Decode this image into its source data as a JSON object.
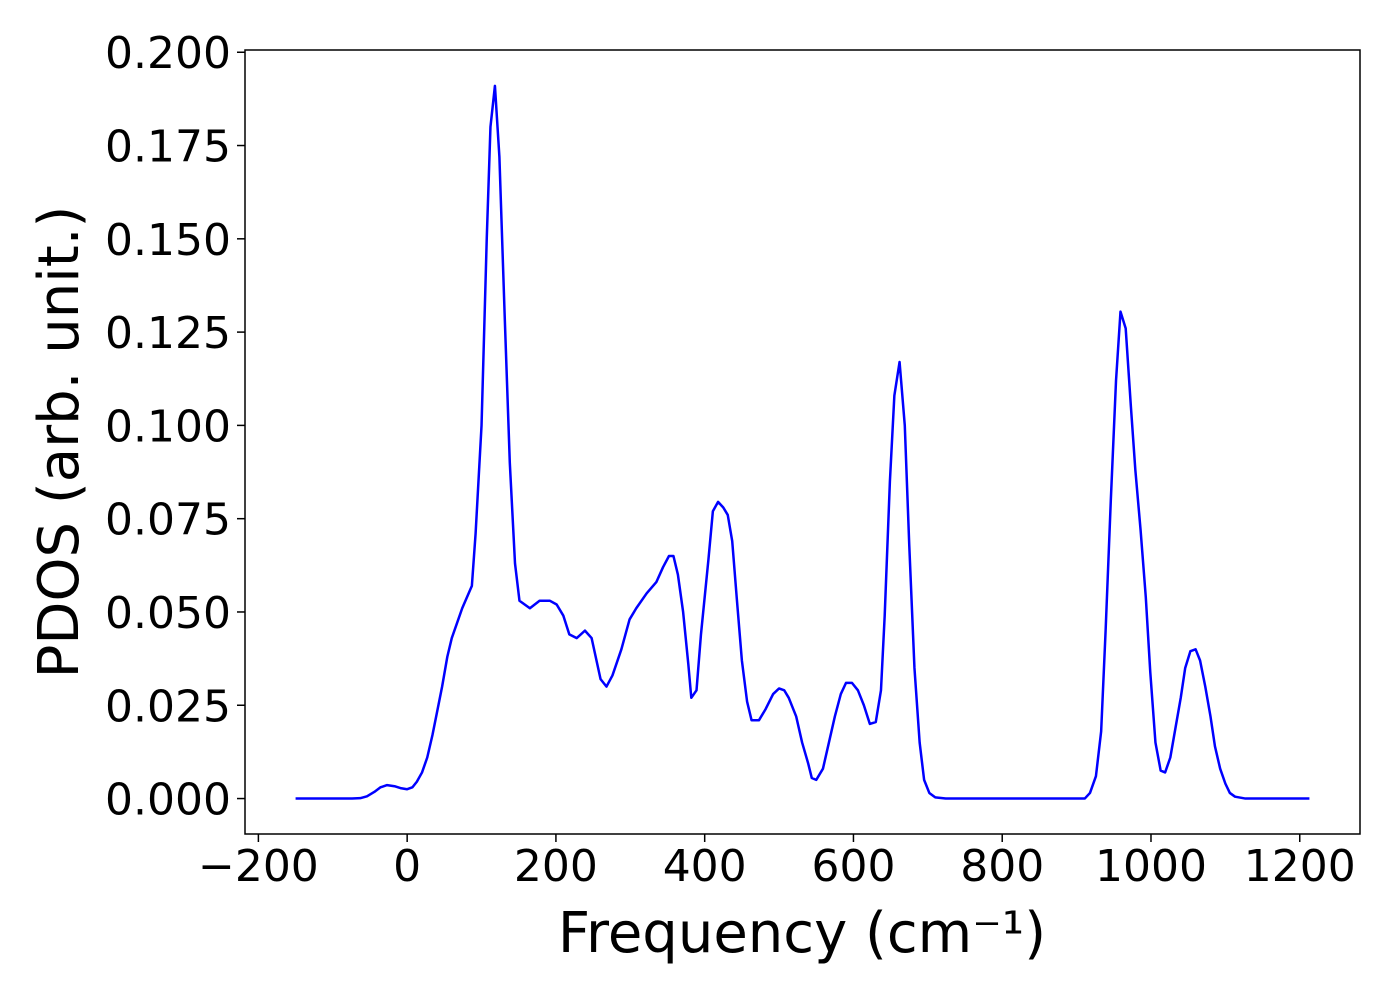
{
  "chart_data": {
    "type": "line",
    "xlabel": "Frequency (cm⁻¹)",
    "ylabel": "PDOS (arb. unit.)",
    "xlim": [
      -218,
      1281
    ],
    "ylim": [
      -0.0095,
      0.2006
    ],
    "xticks": [
      {
        "value": -200,
        "label": "−200"
      },
      0,
      200,
      400,
      600,
      800,
      1000,
      1200
    ],
    "yticks": [
      {
        "value": 0,
        "label": "0.000"
      },
      {
        "value": 0.025,
        "label": "0.025"
      },
      {
        "value": 0.05,
        "label": "0.050"
      },
      {
        "value": 0.075,
        "label": "0.075"
      },
      {
        "value": 0.1,
        "label": "0.100"
      },
      {
        "value": 0.125,
        "label": "0.125"
      },
      {
        "value": 0.15,
        "label": "0.150"
      },
      {
        "value": 0.175,
        "label": "0.175"
      },
      {
        "value": 0.2,
        "label": "0.200"
      }
    ],
    "x": [
      -150,
      -74,
      -63,
      -54,
      -44,
      -36,
      -27,
      -17,
      -9,
      0,
      7,
      13,
      20,
      27,
      34,
      40,
      47,
      54,
      60,
      67,
      74,
      87,
      92,
      100,
      107,
      112,
      118,
      124,
      131,
      138,
      145,
      151,
      165,
      178,
      192,
      201,
      210,
      218,
      228,
      239,
      248,
      260,
      268,
      276,
      288,
      299,
      308,
      322,
      335,
      344,
      352,
      358,
      364,
      371,
      378,
      382,
      389,
      395,
      405,
      411,
      418,
      425,
      431,
      437,
      443,
      450,
      457,
      463,
      473,
      482,
      492,
      500,
      507,
      513,
      523,
      531,
      539,
      544,
      550,
      559,
      567,
      575,
      583,
      590,
      598,
      606,
      614,
      622,
      630,
      637,
      642,
      649,
      655,
      662,
      669,
      675,
      682,
      689,
      695,
      702,
      710,
      724,
      911,
      918,
      926,
      933,
      939,
      946,
      953,
      959,
      966,
      973,
      979,
      986,
      993,
      999,
      1006,
      1013,
      1019,
      1026,
      1033,
      1040,
      1046,
      1053,
      1060,
      1066,
      1073,
      1080,
      1086,
      1093,
      1100,
      1106,
      1113,
      1127,
      1213
    ],
    "series": [
      {
        "color": "#0000ff",
        "values": [
          0,
          0,
          0.0001,
          0.0006,
          0.0018,
          0.003,
          0.0036,
          0.0033,
          0.0028,
          0.0025,
          0.003,
          0.0045,
          0.007,
          0.011,
          0.017,
          0.023,
          0.03,
          0.038,
          0.043,
          0.047,
          0.051,
          0.057,
          0.071,
          0.1,
          0.15,
          0.18,
          0.191,
          0.172,
          0.13,
          0.09,
          0.063,
          0.053,
          0.051,
          0.053,
          0.053,
          0.052,
          0.049,
          0.044,
          0.043,
          0.045,
          0.043,
          0.032,
          0.03,
          0.033,
          0.04,
          0.048,
          0.051,
          0.055,
          0.058,
          0.062,
          0.065,
          0.065,
          0.06,
          0.05,
          0.036,
          0.027,
          0.029,
          0.044,
          0.064,
          0.077,
          0.0795,
          0.078,
          0.076,
          0.069,
          0.054,
          0.037,
          0.026,
          0.021,
          0.021,
          0.024,
          0.028,
          0.0295,
          0.029,
          0.027,
          0.022,
          0.015,
          0.0095,
          0.0055,
          0.005,
          0.008,
          0.015,
          0.022,
          0.028,
          0.031,
          0.031,
          0.029,
          0.025,
          0.02,
          0.0205,
          0.029,
          0.049,
          0.085,
          0.108,
          0.117,
          0.1,
          0.068,
          0.035,
          0.015,
          0.005,
          0.0015,
          0.0003,
          0,
          0,
          0.0015,
          0.006,
          0.018,
          0.045,
          0.08,
          0.112,
          0.1305,
          0.126,
          0.105,
          0.088,
          0.072,
          0.054,
          0.034,
          0.015,
          0.0075,
          0.007,
          0.011,
          0.019,
          0.027,
          0.035,
          0.0395,
          0.04,
          0.037,
          0.03,
          0.022,
          0.014,
          0.008,
          0.004,
          0.0015,
          0.0005,
          0,
          0
        ]
      }
    ]
  }
}
